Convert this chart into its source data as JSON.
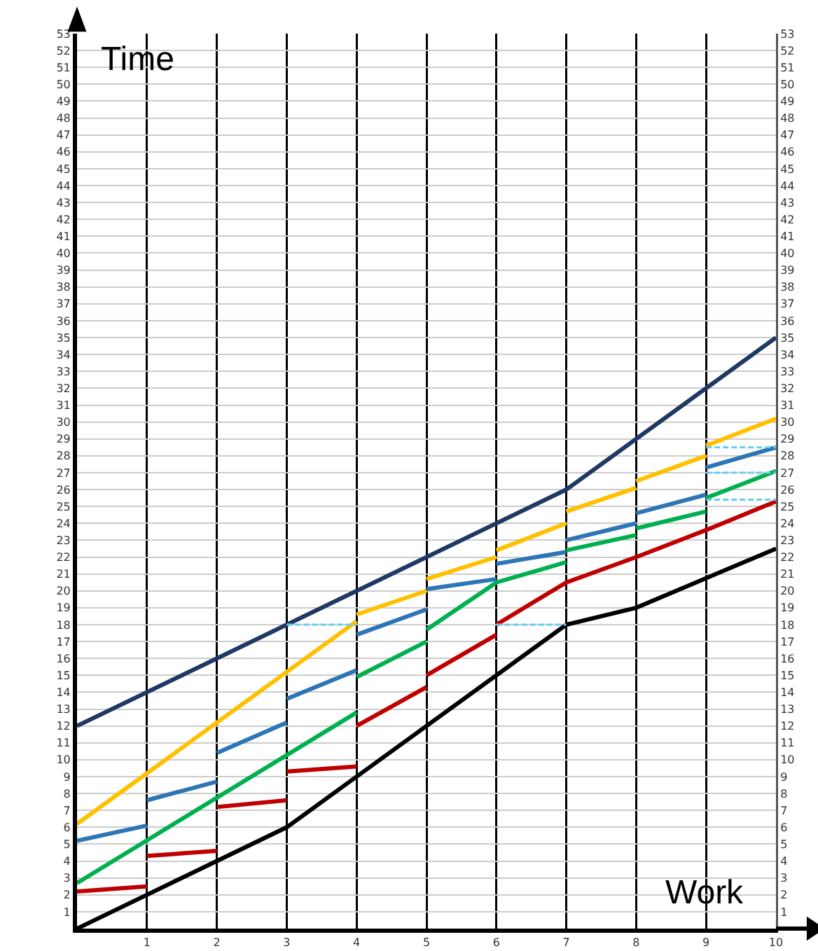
{
  "chart_data": {
    "type": "line",
    "xlabel": "Work",
    "ylabel": "Time",
    "xlim": [
      0,
      10
    ],
    "xticks": [
      1,
      2,
      3,
      4,
      5,
      6,
      7,
      8,
      9,
      10
    ],
    "ylim": [
      0,
      53
    ],
    "yticks": [
      1,
      2,
      3,
      4,
      5,
      6,
      7,
      8,
      9,
      10,
      11,
      12,
      13,
      14,
      15,
      16,
      17,
      18,
      19,
      20,
      21,
      22,
      23,
      24,
      25,
      26,
      27,
      28,
      29,
      30,
      31,
      32,
      33,
      34,
      35,
      36,
      37,
      38,
      39,
      40,
      41,
      42,
      43,
      44,
      45,
      46,
      47,
      48,
      49,
      50,
      51,
      52,
      53
    ],
    "y2lim": [
      0,
      53
    ],
    "y2ticks": [
      1,
      2,
      3,
      4,
      5,
      6,
      7,
      8,
      9,
      10,
      11,
      12,
      13,
      14,
      15,
      16,
      17,
      18,
      19,
      20,
      21,
      22,
      23,
      24,
      25,
      26,
      27,
      28,
      29,
      30,
      31,
      32,
      33,
      34,
      35,
      36,
      37,
      38,
      39,
      40,
      41,
      42,
      43,
      44,
      45,
      46,
      47,
      48,
      49,
      50,
      51,
      52,
      53
    ],
    "grid": true,
    "marker": "none",
    "line_style": "solid",
    "series": [
      {
        "color": "#1f3864",
        "x": [
          0,
          7,
          10
        ],
        "values": [
          12,
          26,
          35
        ]
      },
      {
        "color": "#000000",
        "x": [
          0,
          3,
          7,
          8,
          10
        ],
        "values": [
          0,
          6,
          18,
          19,
          22.5
        ]
      },
      {
        "color": "#ffc000",
        "x": [
          0,
          4
        ],
        "values": [
          6.2,
          18.2
        ]
      },
      {
        "color": "#ffc000",
        "x": [
          4,
          5
        ],
        "values": [
          18.6,
          20
        ]
      },
      {
        "color": "#ffc000",
        "x": [
          5,
          6
        ],
        "values": [
          20.7,
          22
        ]
      },
      {
        "color": "#ffc000",
        "x": [
          6,
          7
        ],
        "values": [
          22.4,
          24
        ]
      },
      {
        "color": "#ffc000",
        "x": [
          7,
          8
        ],
        "values": [
          24.7,
          26.1
        ]
      },
      {
        "color": "#ffc000",
        "x": [
          8,
          9
        ],
        "values": [
          26.5,
          28
        ]
      },
      {
        "color": "#ffc000",
        "x": [
          9,
          10
        ],
        "values": [
          28.6,
          30.2
        ]
      },
      {
        "color": "#2e75b6",
        "x": [
          0,
          1
        ],
        "values": [
          5.2,
          6.1
        ]
      },
      {
        "color": "#2e75b6",
        "x": [
          1,
          2
        ],
        "values": [
          7.6,
          8.7
        ]
      },
      {
        "color": "#2e75b6",
        "x": [
          2,
          3
        ],
        "values": [
          10.4,
          12.2
        ]
      },
      {
        "color": "#2e75b6",
        "x": [
          3,
          4
        ],
        "values": [
          13.6,
          15.3
        ]
      },
      {
        "color": "#2e75b6",
        "x": [
          4,
          5
        ],
        "values": [
          17.4,
          18.9
        ]
      },
      {
        "color": "#2e75b6",
        "x": [
          5,
          6
        ],
        "values": [
          20.1,
          20.7
        ]
      },
      {
        "color": "#2e75b6",
        "x": [
          6,
          7
        ],
        "values": [
          21.6,
          22.3
        ]
      },
      {
        "color": "#2e75b6",
        "x": [
          7,
          8
        ],
        "values": [
          23,
          24
        ]
      },
      {
        "color": "#2e75b6",
        "x": [
          8,
          9
        ],
        "values": [
          24.6,
          25.7
        ]
      },
      {
        "color": "#2e75b6",
        "x": [
          9,
          10
        ],
        "values": [
          27.3,
          28.5
        ]
      },
      {
        "color": "#00b050",
        "x": [
          0,
          4
        ],
        "values": [
          2.7,
          12.8
        ]
      },
      {
        "color": "#00b050",
        "x": [
          4,
          5
        ],
        "values": [
          14.9,
          17
        ]
      },
      {
        "color": "#00b050",
        "x": [
          5,
          6,
          7
        ],
        "values": [
          17.7,
          20.5,
          21.7
        ]
      },
      {
        "color": "#00b050",
        "x": [
          7,
          8
        ],
        "values": [
          22.4,
          23.3
        ]
      },
      {
        "color": "#00b050",
        "x": [
          8,
          9
        ],
        "values": [
          23.7,
          24.7
        ]
      },
      {
        "color": "#00b050",
        "x": [
          9,
          10
        ],
        "values": [
          25.5,
          27.1
        ]
      },
      {
        "color": "#c00000",
        "x": [
          0,
          1
        ],
        "values": [
          2.2,
          2.5
        ]
      },
      {
        "color": "#c00000",
        "x": [
          1,
          2
        ],
        "values": [
          4.3,
          4.6
        ]
      },
      {
        "color": "#c00000",
        "x": [
          2,
          3
        ],
        "values": [
          7.2,
          7.6
        ]
      },
      {
        "color": "#c00000",
        "x": [
          3,
          4
        ],
        "values": [
          9.3,
          9.6
        ]
      },
      {
        "color": "#c00000",
        "x": [
          4,
          5
        ],
        "values": [
          12,
          14.3
        ]
      },
      {
        "color": "#c00000",
        "x": [
          5,
          6
        ],
        "values": [
          15,
          17.4
        ]
      },
      {
        "color": "#c00000",
        "x": [
          6,
          7,
          8,
          9,
          10
        ],
        "values": [
          18,
          20.5,
          22,
          23.6,
          25.3
        ]
      },
      {
        "color": "#66ccf0",
        "line_style": "dashed",
        "x": [
          3,
          4
        ],
        "values": [
          18,
          18
        ]
      },
      {
        "color": "#66ccf0",
        "line_style": "dashed",
        "x": [
          6,
          7
        ],
        "values": [
          18,
          18
        ]
      },
      {
        "color": "#66ccf0",
        "line_style": "dashed",
        "x": [
          9,
          10
        ],
        "values": [
          28.5,
          28.5
        ]
      },
      {
        "color": "#66ccf0",
        "line_style": "dashed",
        "x": [
          9,
          10
        ],
        "values": [
          27,
          27
        ]
      },
      {
        "color": "#66ccf0",
        "line_style": "dashed",
        "x": [
          9,
          10
        ],
        "values": [
          25.4,
          25.4
        ]
      }
    ]
  }
}
